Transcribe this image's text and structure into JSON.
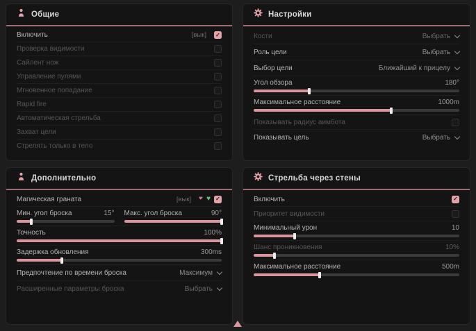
{
  "ui": {
    "accent": "#e3a1a9",
    "cursor_marker": "triangle-up"
  },
  "panels": {
    "general": {
      "title": "Общие",
      "rows": [
        {
          "label": "Включить",
          "hint": "[вык]",
          "checked": true
        },
        {
          "label": "Проверка видимости",
          "checked": false
        },
        {
          "label": "Сайлент нож",
          "checked": false
        },
        {
          "label": "Управление пулями",
          "checked": false
        },
        {
          "label": "Мгновенное попадание",
          "checked": false
        },
        {
          "label": "Rapid fire",
          "checked": false
        },
        {
          "label": "Автоматическая стрельба",
          "checked": false
        },
        {
          "label": "Захват цели",
          "checked": false
        },
        {
          "label": "Стрелять только в тело",
          "checked": false
        }
      ]
    },
    "settings": {
      "title": "Настройки",
      "bones_label": "Кости",
      "bones_value": "Выбрать",
      "target_role_label": "Роль цели",
      "target_role_value": "Выбрать",
      "target_select_label": "Выбор цели",
      "target_select_value": "Ближайший к прицелу",
      "fov_label": "Угол обзора",
      "fov_value": "180°",
      "fov_percent": 27,
      "max_distance_label": "Максимальное расстояние",
      "max_distance_value": "1000m",
      "max_distance_percent": 67,
      "show_radius_label": "Показывать радиус аимбота",
      "show_radius_checked": false,
      "show_target_label": "Показывать цель",
      "show_target_value": "Выбрать"
    },
    "additional": {
      "title": "Дополнительно",
      "magic_grenade_label": "Магическая граната",
      "magic_grenade_hint": "[вык]",
      "magic_grenade_checked": true,
      "min_angle_label": "Мин. угол броска",
      "min_angle_value": "15°",
      "min_angle_percent": 15,
      "max_angle_label": "Макс. угол броска",
      "max_angle_value": "90°",
      "max_angle_percent": 100,
      "accuracy_label": "Точность",
      "accuracy_value": "100%",
      "accuracy_percent": 100,
      "delay_label": "Задержка обновления",
      "delay_value": "300ms",
      "delay_percent": 22,
      "throw_time_label": "Предпочтение по времени броска",
      "throw_time_value": "Максимум",
      "advanced_label": "Расширенные параметры броска",
      "advanced_value": "Выбрать"
    },
    "wallbang": {
      "title": "Стрельба через стены",
      "enable_label": "Включить",
      "enable_checked": true,
      "visibility_priority_label": "Приоритет видимости",
      "visibility_priority_checked": false,
      "min_damage_label": "Минимальный урон",
      "min_damage_value": "10",
      "min_damage_percent": 20,
      "penetration_label": "Шанс проникновения",
      "penetration_value": "10%",
      "penetration_percent": 10,
      "max_distance_label": "Максимальное расстояние",
      "max_distance_value": "500m",
      "max_distance_percent": 32
    }
  }
}
